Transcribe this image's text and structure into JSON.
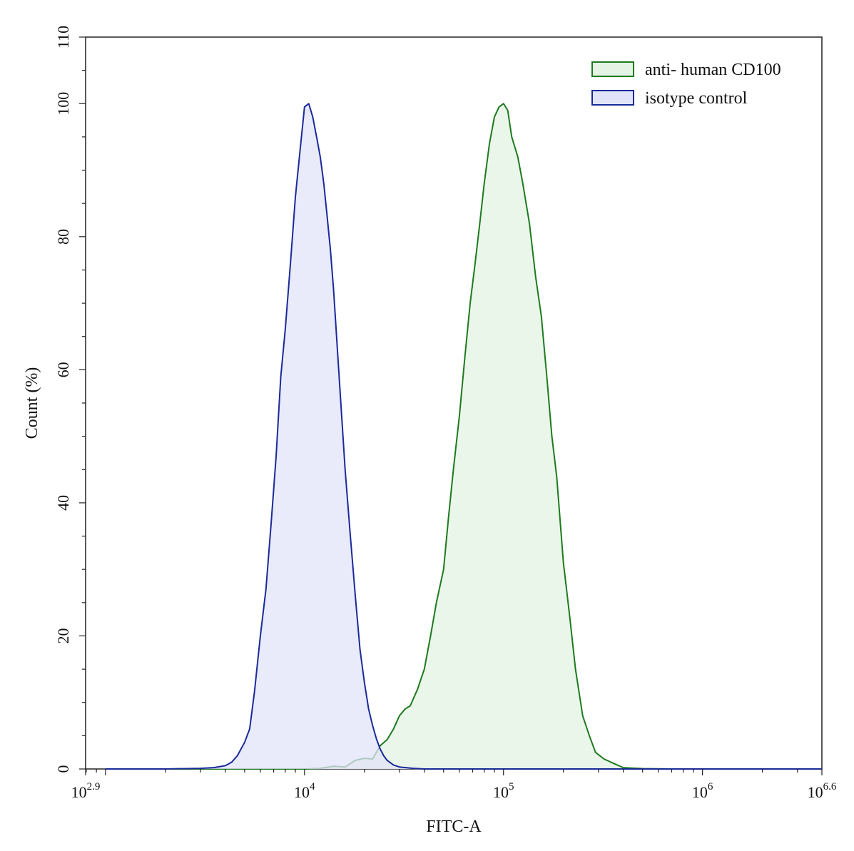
{
  "chart_data": {
    "type": "area",
    "xlabel": "FITC-A",
    "ylabel": "Count  (%)",
    "x_scale": "log10",
    "xlim": [
      794.33,
      3981071.7
    ],
    "ylim": [
      0,
      110
    ],
    "x_ticks": [
      {
        "value": 794.33,
        "base": "10",
        "exp": "2.9"
      },
      {
        "value": 10000,
        "base": "10",
        "exp": "4"
      },
      {
        "value": 100000,
        "base": "10",
        "exp": "5"
      },
      {
        "value": 1000000,
        "base": "10",
        "exp": "6"
      },
      {
        "value": 3981071.7,
        "base": "10",
        "exp": "6.6"
      }
    ],
    "y_ticks": [
      0,
      20,
      40,
      60,
      80,
      100,
      110
    ],
    "grid": false,
    "legend_position": "top-right",
    "series": [
      {
        "name": "anti- human CD100",
        "stroke": "#1e7a1e",
        "fill": "#e4f3e4",
        "x": [
          2000,
          5000,
          10000,
          12000,
          14000,
          16000,
          18000,
          20000,
          22000,
          24000,
          26000,
          28000,
          30000,
          32000,
          34000,
          37000,
          40000,
          43000,
          46000,
          50000,
          53000,
          56000,
          60000,
          64000,
          68000,
          72000,
          76000,
          80000,
          85000,
          90000,
          95000,
          100000,
          105000,
          110000,
          118000,
          125000,
          135000,
          145000,
          155000,
          165000,
          175000,
          185000,
          200000,
          215000,
          230000,
          250000,
          270000,
          290000,
          320000,
          360000,
          400000,
          500000,
          700000,
          1000000,
          2000000,
          3981071.7
        ],
        "y": [
          0,
          0,
          0,
          0.1,
          0.4,
          0.3,
          1.3,
          1.6,
          1.5,
          3.5,
          4.4,
          6.0,
          8.0,
          9.0,
          9.5,
          12,
          15,
          20,
          25,
          30,
          38,
          45,
          53,
          62,
          70,
          76,
          82,
          88,
          94,
          98,
          99.5,
          100,
          99,
          95,
          92,
          88,
          82,
          74,
          68,
          59,
          50,
          44,
          31,
          23,
          15,
          8,
          5,
          2.5,
          1.5,
          0.8,
          0.2,
          0.05,
          0,
          0,
          0,
          0
        ]
      },
      {
        "name": "isotype control",
        "stroke": "#1a2a9a",
        "fill": "#e1e3f8",
        "x": [
          1000,
          2000,
          3000,
          3500,
          4000,
          4300,
          4600,
          5000,
          5300,
          5600,
          6000,
          6400,
          6800,
          7200,
          7600,
          8000,
          8500,
          9000,
          9500,
          10000,
          10500,
          11000,
          11500,
          12000,
          12500,
          13000,
          13500,
          14000,
          15000,
          16000,
          17000,
          18000,
          19000,
          20000,
          21000,
          22000,
          23000,
          24000,
          25000,
          26000,
          28000,
          30000,
          35000,
          40000,
          50000,
          100000,
          1000000,
          3981071.7
        ],
        "y": [
          0,
          0,
          0.1,
          0.2,
          0.5,
          1.0,
          2.0,
          4.0,
          6.0,
          11.5,
          20,
          27,
          37,
          47,
          59,
          66,
          76,
          86,
          93,
          99.5,
          100,
          98,
          95,
          92,
          88,
          83,
          78,
          72,
          58,
          45,
          35,
          26,
          18,
          13,
          9,
          6.5,
          4.5,
          3,
          2,
          1.3,
          0.6,
          0.3,
          0.1,
          0,
          0,
          0,
          0,
          0
        ]
      }
    ]
  }
}
